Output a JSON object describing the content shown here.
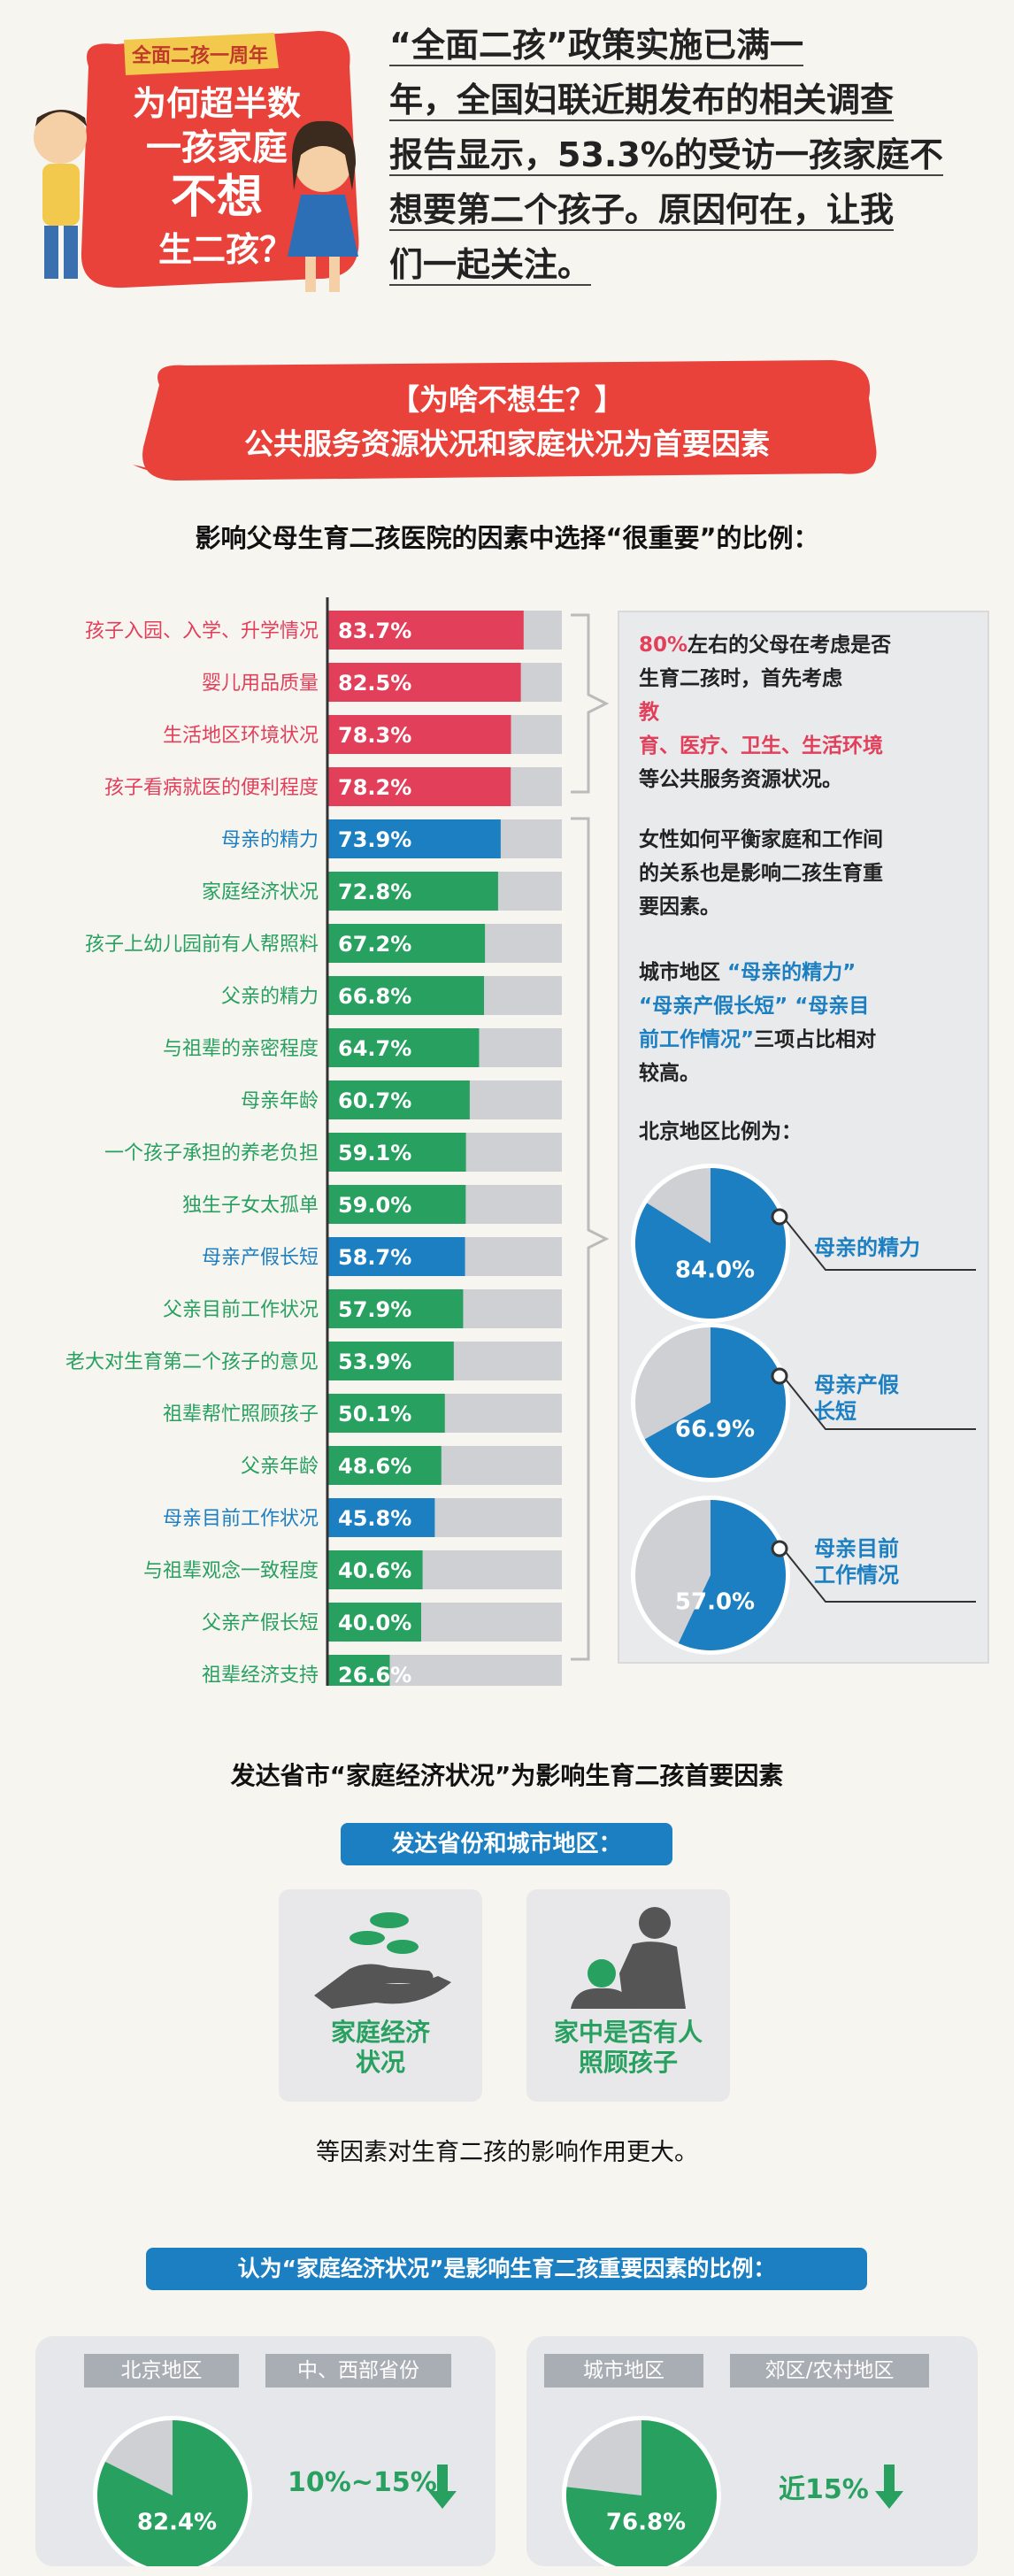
{
  "header": {
    "logo_ribbon": "全面二孩一周年",
    "logo_lines": [
      "为何超半数",
      "一孩家庭",
      "不想",
      "生二孩？"
    ],
    "intro_lines": [
      "“全面二孩”政策实施已满一",
      "年，全国妇联近期发布的相关调查",
      "报告显示，53.3%的受访一孩家庭不",
      "想要第二个孩子。原因何在，让我",
      "们一起关注。"
    ]
  },
  "banner": {
    "line1": "【为啥不想生？】",
    "line2": "公共服务资源状况和家庭状况为首要因素"
  },
  "section1_title": "影响父母生育二孩医院的因素中选择“很重要”的比例：",
  "colors": {
    "red": "#e23f5b",
    "blue": "#1b7fc2",
    "green": "#27a060",
    "gray": "#cfd0d4"
  },
  "chart_data": {
    "type": "bar",
    "orientation": "horizontal",
    "categories": [
      "孩子入园、入学、升学情况",
      "婴儿用品质量",
      "生活地区环境状况",
      "孩子看病就医的便利程度",
      "母亲的精力",
      "家庭经济状况",
      "孩子上幼儿园前有人帮照料",
      "父亲的精力",
      "与祖辈的亲密程度",
      "母亲年龄",
      "一个孩子承担的养老负担",
      "独生子女太孤单",
      "母亲产假长短",
      "父亲目前工作状况",
      "老大对生育第二个孩子的意见",
      "祖辈帮忙照顾孩子",
      "父亲年龄",
      "母亲目前工作状况",
      "与祖辈观念一致程度",
      "父亲产假长短",
      "祖辈经济支持"
    ],
    "values": [
      83.7,
      82.5,
      78.3,
      78.2,
      73.9,
      72.8,
      67.2,
      66.8,
      64.7,
      60.7,
      59.1,
      59.0,
      58.7,
      57.9,
      53.9,
      50.1,
      48.6,
      45.8,
      40.6,
      40.0,
      26.6
    ],
    "labels": [
      "83.7%",
      "82.5%",
      "78.3%",
      "78.2%",
      "73.9%",
      "72.8%",
      "67.2%",
      "66.8%",
      "64.7%",
      "60.7%",
      "59.1%",
      "59.0%",
      "58.7%",
      "57.9%",
      "53.9%",
      "50.1%",
      "48.6%",
      "45.8%",
      "40.6%",
      "40.0%",
      "26.6%"
    ],
    "bar_colors": [
      "red",
      "red",
      "red",
      "red",
      "blue",
      "green",
      "green",
      "green",
      "green",
      "green",
      "green",
      "green",
      "blue",
      "green",
      "green",
      "green",
      "green",
      "blue",
      "green",
      "green",
      "green"
    ],
    "xlim": [
      0,
      100
    ]
  },
  "panel": {
    "p1": {
      "pct": "80%",
      "a": "左右的父母在考虑是否",
      "b": "生育二孩时，首先考虑",
      "c1": "教",
      "c2": "育、医疗、卫生、生活环境",
      "d": "等公共服务资源状况。"
    },
    "p2": [
      "女性如何平衡家庭和工作间",
      "的关系也是影响二孩生育重",
      "要因素。"
    ],
    "p3": {
      "a": "城市地区",
      "h1": "“母亲的精力”",
      "h2": "“母亲产假长短”",
      "h3": "“母亲目",
      "h4": "前工作情况”",
      "b": "三项占比相对",
      "c": "较高。"
    },
    "p4": "北京地区比例为：",
    "pies": [
      {
        "label1": "母亲的精力",
        "label2": "",
        "value": 84.0,
        "text": "84.0%"
      },
      {
        "label1": "母亲产假",
        "label2": "长短",
        "value": 66.9,
        "text": "66.9%"
      },
      {
        "label1": "母亲目前",
        "label2": "工作情况",
        "value": 57.0,
        "text": "57.0%"
      }
    ]
  },
  "section2": {
    "title": "发达省市“家庭经济状况”为影响生育二孩首要因素",
    "pill": "发达省份和城市地区：",
    "icon1_label": [
      "家庭经济",
      "状况"
    ],
    "icon2_label": [
      "家中是否有人",
      "照顾孩子"
    ],
    "note": "等因素对生育二孩的影响作用更大。",
    "pill2": "认为“家庭经济状况”是影响生育二孩重要因素的比例：",
    "tabs": [
      "北京地区",
      "中、西部省份",
      "城市地区",
      "郊区/农村地区"
    ],
    "pie_left": {
      "value": 82.4,
      "text": "82.4%"
    },
    "pie_right": {
      "value": 76.8,
      "text": "76.8%"
    },
    "diff_left": "10%~15%",
    "diff_right": "近15%"
  }
}
